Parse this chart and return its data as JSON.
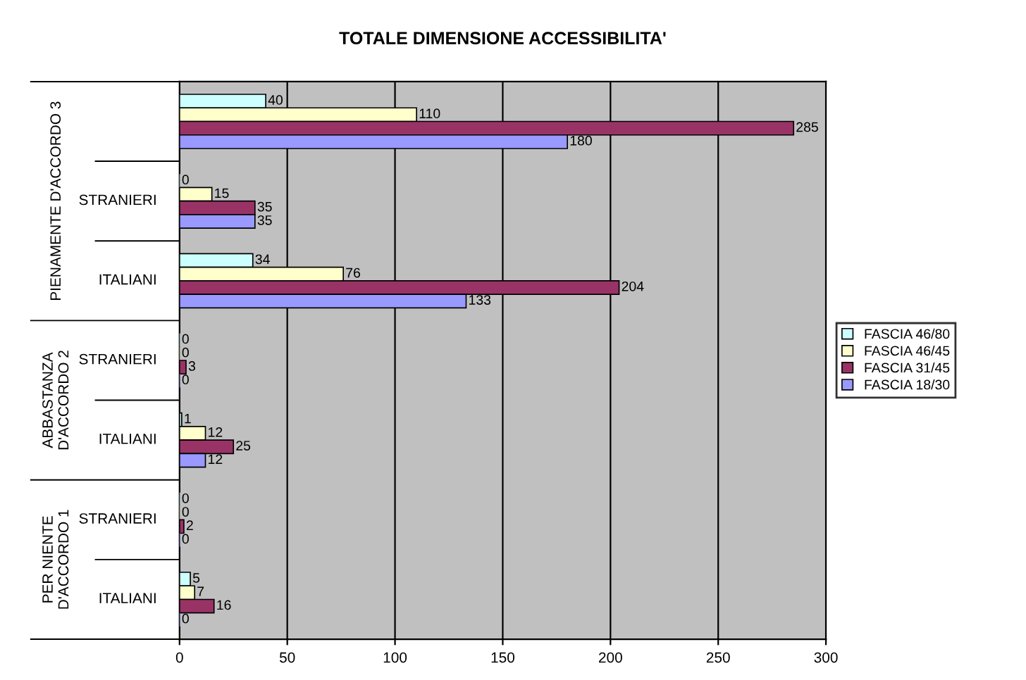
{
  "chart_data": {
    "type": "bar",
    "orientation": "horizontal",
    "title": "TOTALE DIMENSIONE ACCESSIBILITA'",
    "categories": [
      null,
      "STRANIERI",
      "ITALIANI",
      "STRANIERI",
      "ITALIANI",
      "STRANIERI",
      "ITALIANI"
    ],
    "annotations": [
      "PIENAMENTE D'ACCORDO 3",
      "ABBASTANZA\nD'ACCORDO 2",
      "PER NIENTE\nD'ACCORDO 1"
    ],
    "series": [
      {
        "name": "FASCIA 46/80",
        "color": "#ccffff",
        "values": [
          40,
          0,
          34,
          0,
          1,
          0,
          5
        ]
      },
      {
        "name": "FASCIA 46/45",
        "color": "#ffffcc",
        "values": [
          110,
          15,
          76,
          0,
          12,
          0,
          7
        ]
      },
      {
        "name": "FASCIA 31/45",
        "color": "#993366",
        "values": [
          285,
          35,
          204,
          3,
          25,
          2,
          16
        ]
      },
      {
        "name": "FASCIA 18/30",
        "color": "#9999ff",
        "values": [
          180,
          35,
          133,
          0,
          12,
          0,
          0
        ]
      }
    ],
    "xlim": [
      0,
      300
    ],
    "xticks": [
      0,
      50,
      100,
      150,
      200,
      250,
      300
    ],
    "grid": "x",
    "legend": "right",
    "data_labels": true
  }
}
